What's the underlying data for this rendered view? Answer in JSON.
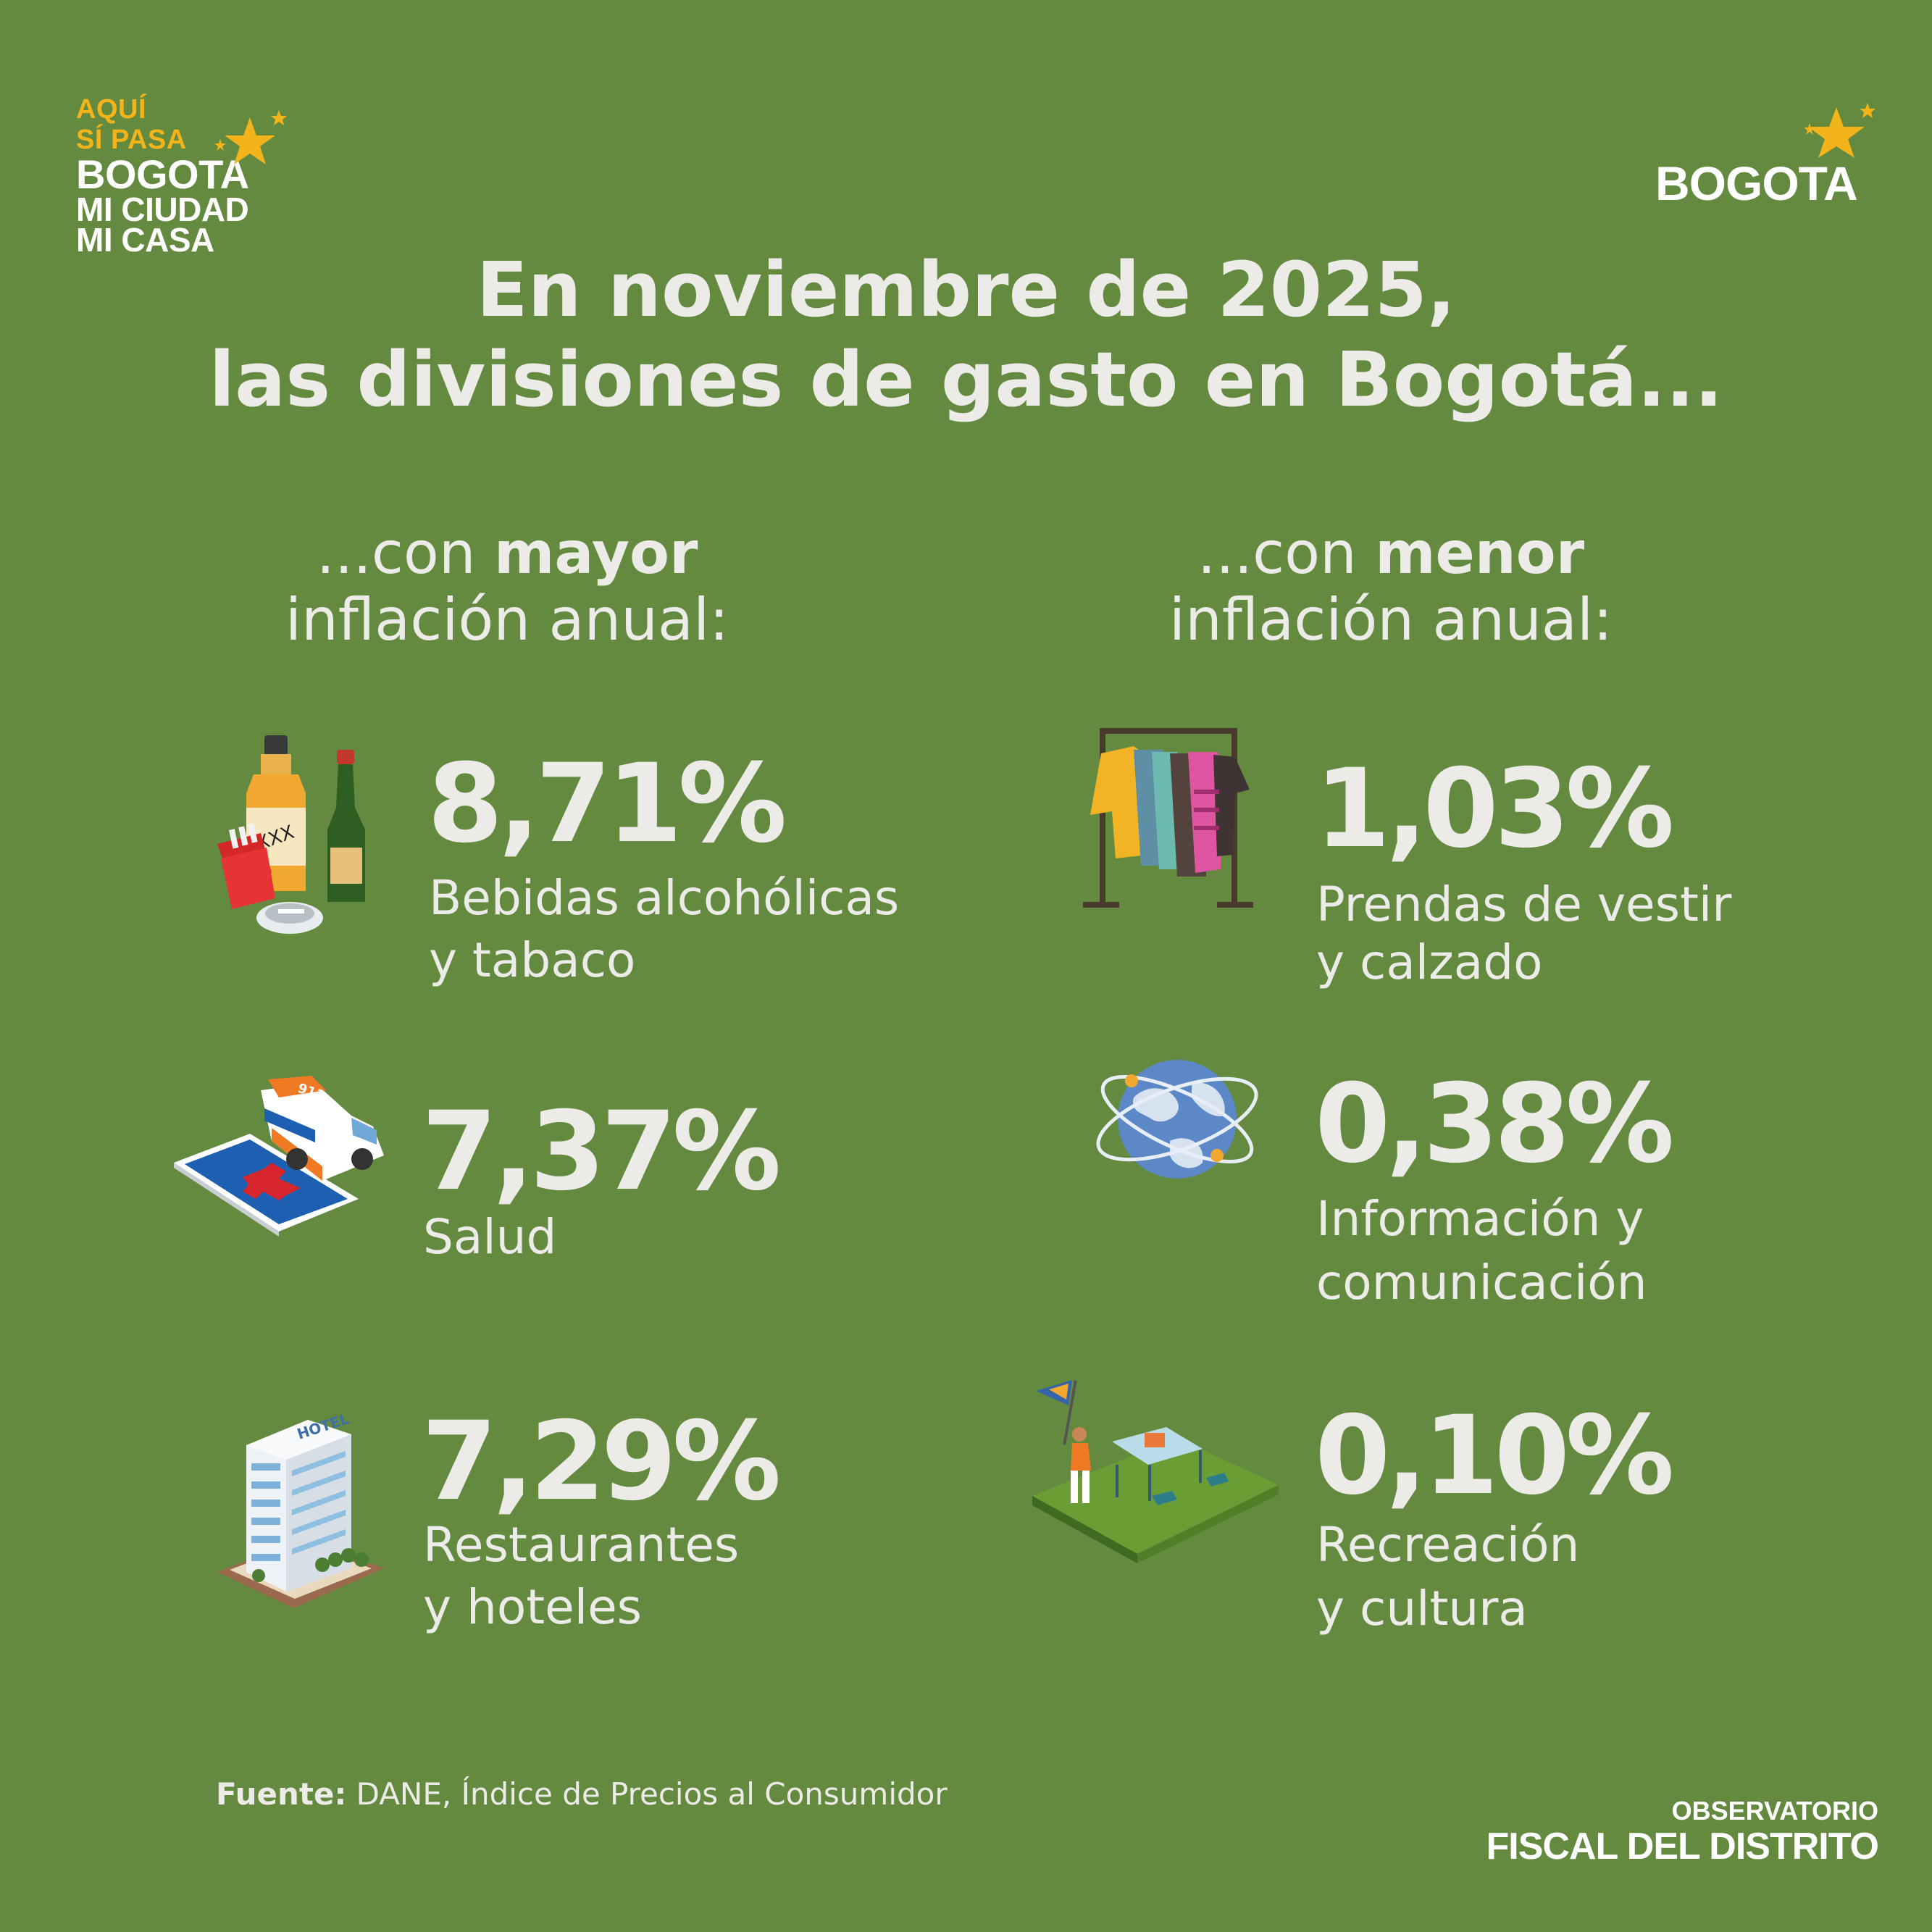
{
  "logos": {
    "left": {
      "line1": "AQUÍ",
      "line2": "SÍ PASA",
      "line3": "BOGOTA",
      "line4": "MI CIUDAD",
      "line5": "MI CASA"
    },
    "right": {
      "word": "BOGOTA"
    },
    "star_color": "#f3b31a"
  },
  "title": {
    "line1": "En noviembre de 2025,",
    "line2": "las divisiones de gasto en Bogotá..."
  },
  "columns": {
    "left": {
      "prefix": "...con ",
      "emphasis": "mayor",
      "line2": "inflación anual:"
    },
    "right": {
      "prefix": "...con ",
      "emphasis": "menor",
      "line2": "inflación anual:"
    }
  },
  "items": {
    "alcohol": {
      "value": "8,71%",
      "label1": "Bebidas alcohólicas",
      "label2": "y tabaco",
      "icon": "alcohol-tobacco-icon"
    },
    "salud": {
      "value": "7,37%",
      "label1": "Salud",
      "icon": "ambulance-health-icon"
    },
    "restaurantes": {
      "value": "7,29%",
      "label1": "Restaurantes",
      "label2": "y hoteles",
      "icon": "hotel-building-icon"
    },
    "prendas": {
      "value": "1,03%",
      "label1": "Prendas de vestir",
      "label2": "y calzado",
      "icon": "clothes-rack-icon"
    },
    "informacion": {
      "value": "0,38%",
      "label1": "Información y",
      "label2": "comunicación",
      "icon": "globe-network-icon"
    },
    "recreacion": {
      "value": "0,10%",
      "label1": "Recreación",
      "label2": "y cultura",
      "icon": "recreation-park-icon"
    }
  },
  "footer": {
    "source_label": "Fuente:",
    "source_text": " DANE, Índice de Precios al Consumidor",
    "org_line1": "OBSERVATORIO",
    "org_line2": "FISCAL DEL DISTRITO"
  },
  "colors": {
    "background": "#648a3f",
    "text": "#ecebe8",
    "accent": "#f3b31a"
  }
}
